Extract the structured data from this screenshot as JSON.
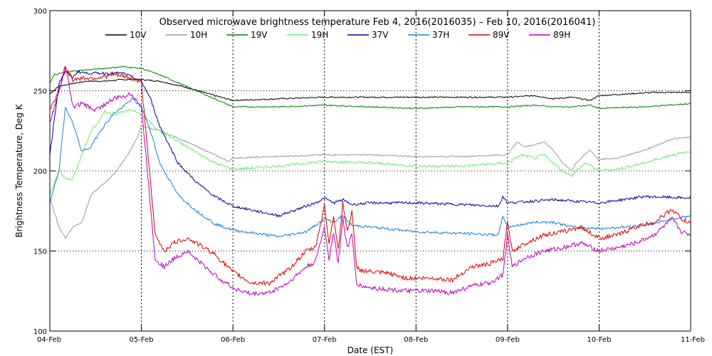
{
  "chart_data": {
    "type": "line",
    "title": "Observed microwave brightness temperature Feb  4, 2016(2016035) – Feb 10, 2016(2016041)",
    "xlabel": "Date (EST)",
    "ylabel": "Brightness Temperature, Deg K",
    "xlim": [
      0,
      7
    ],
    "ylim": [
      100,
      300
    ],
    "x_ticks": [
      {
        "value": 0,
        "label": "04-Feb"
      },
      {
        "value": 1,
        "label": "05-Feb"
      },
      {
        "value": 2,
        "label": "06-Feb"
      },
      {
        "value": 3,
        "label": "07-Feb"
      },
      {
        "value": 4,
        "label": "08-Feb"
      },
      {
        "value": 5,
        "label": "09-Feb"
      },
      {
        "value": 6,
        "label": "10-Feb"
      },
      {
        "value": 7,
        "label": "11-Feb"
      }
    ],
    "y_ticks": [
      100,
      150,
      200,
      250,
      300
    ],
    "grid": "dotted",
    "legend_position": "top",
    "series": [
      {
        "name": "10V",
        "color": "#000000",
        "x": [
          0,
          0.1,
          0.2,
          0.4,
          0.6,
          0.8,
          1.0,
          1.2,
          1.5,
          1.8,
          2.0,
          2.5,
          3.0,
          3.5,
          4.0,
          4.5,
          5.0,
          5.3,
          5.5,
          5.7,
          5.9,
          6.0,
          6.3,
          6.6,
          7.0
        ],
        "values": [
          248,
          253,
          254,
          256,
          256,
          257,
          257,
          256,
          252,
          247,
          244,
          245,
          246,
          246,
          246,
          246,
          246,
          247,
          245,
          246,
          244,
          247,
          248,
          249,
          249
        ]
      },
      {
        "name": "10H",
        "color": "#999999",
        "x": [
          0,
          0.1,
          0.17,
          0.25,
          0.35,
          0.45,
          0.55,
          0.7,
          0.85,
          0.95,
          1.0,
          1.2,
          1.5,
          1.8,
          1.95,
          2.0,
          2.5,
          3.0,
          3.5,
          4.0,
          4.5,
          5.0,
          5.1,
          5.2,
          5.4,
          5.5,
          5.6,
          5.7,
          5.75,
          5.9,
          6.0,
          6.2,
          6.5,
          6.8,
          7.0
        ],
        "values": [
          183,
          165,
          158,
          165,
          168,
          185,
          190,
          198,
          210,
          220,
          228,
          225,
          218,
          210,
          206,
          208,
          209,
          210,
          210,
          209,
          209,
          210,
          218,
          215,
          218,
          213,
          205,
          200,
          205,
          213,
          207,
          208,
          213,
          220,
          221
        ]
      },
      {
        "name": "19V",
        "color": "#008000",
        "x": [
          0,
          0.05,
          0.2,
          0.4,
          0.6,
          0.8,
          1.0,
          1.2,
          1.4,
          1.6,
          1.8,
          2.0,
          2.5,
          3.0,
          3.5,
          4.0,
          4.5,
          5.0,
          5.3,
          5.5,
          5.7,
          5.9,
          6.0,
          6.5,
          7.0
        ],
        "values": [
          255,
          260,
          262,
          263,
          264,
          265,
          264,
          260,
          255,
          250,
          245,
          240,
          240,
          241,
          240,
          239,
          240,
          240,
          241,
          240,
          240,
          241,
          239,
          240,
          242
        ]
      },
      {
        "name": "19H",
        "color": "#66ee66",
        "x": [
          0,
          0.1,
          0.17,
          0.25,
          0.35,
          0.45,
          0.55,
          0.6,
          0.7,
          0.8,
          0.9,
          1.0,
          1.2,
          1.5,
          1.8,
          2.0,
          2.5,
          3.0,
          3.5,
          4.0,
          4.5,
          5.0,
          5.15,
          5.3,
          5.4,
          5.5,
          5.6,
          5.7,
          5.75,
          5.85,
          6.0,
          6.2,
          6.5,
          6.8,
          7.0
        ],
        "values": [
          185,
          200,
          195,
          195,
          210,
          225,
          232,
          237,
          235,
          237,
          238,
          235,
          225,
          215,
          205,
          201,
          203,
          206,
          205,
          203,
          203,
          205,
          210,
          208,
          210,
          205,
          200,
          197,
          200,
          205,
          200,
          201,
          205,
          210,
          212
        ]
      },
      {
        "name": "37V",
        "color": "#0000aa",
        "x": [
          0,
          0.1,
          0.17,
          0.25,
          0.3,
          0.4,
          0.6,
          0.8,
          1.0,
          1.1,
          1.2,
          1.4,
          1.6,
          1.8,
          2.0,
          2.5,
          2.8,
          2.9,
          3.0,
          3.1,
          3.2,
          3.3,
          3.5,
          4.0,
          4.5,
          4.9,
          4.95,
          5.0,
          5.5,
          6.0,
          6.5,
          7.0
        ],
        "values": [
          210,
          255,
          262,
          258,
          262,
          261,
          261,
          261,
          256,
          245,
          228,
          205,
          193,
          184,
          178,
          172,
          178,
          180,
          183,
          180,
          182,
          179,
          180,
          180,
          179,
          178,
          184,
          180,
          182,
          180,
          184,
          183
        ]
      },
      {
        "name": "37H",
        "color": "#1a7fd4",
        "x": [
          0,
          0.1,
          0.17,
          0.25,
          0.35,
          0.45,
          0.55,
          0.7,
          0.8,
          0.9,
          1.0,
          1.1,
          1.2,
          1.4,
          1.6,
          1.8,
          2.0,
          2.5,
          2.8,
          2.9,
          3.0,
          3.1,
          3.2,
          3.3,
          3.5,
          4.0,
          4.5,
          4.9,
          4.95,
          5.0,
          5.3,
          5.5,
          5.7,
          6.0,
          6.3,
          6.6,
          6.8,
          7.0
        ],
        "values": [
          180,
          200,
          240,
          230,
          212,
          215,
          225,
          236,
          240,
          245,
          240,
          225,
          205,
          185,
          175,
          167,
          163,
          159,
          162,
          166,
          170,
          168,
          172,
          166,
          165,
          162,
          161,
          160,
          172,
          165,
          168,
          168,
          165,
          164,
          165,
          167,
          170,
          172
        ]
      },
      {
        "name": "89V",
        "color": "#e00000",
        "x": [
          0,
          0.1,
          0.17,
          0.25,
          0.35,
          0.5,
          0.7,
          0.9,
          1.0,
          1.05,
          1.15,
          1.25,
          1.35,
          1.5,
          1.6,
          1.8,
          2.0,
          2.2,
          2.4,
          2.6,
          2.8,
          2.9,
          3.0,
          3.05,
          3.1,
          3.15,
          3.2,
          3.25,
          3.3,
          3.35,
          3.4,
          3.5,
          3.7,
          3.9,
          4.0,
          4.2,
          4.4,
          4.6,
          4.8,
          4.95,
          5.0,
          5.05,
          5.2,
          5.4,
          5.6,
          5.8,
          6.0,
          6.2,
          6.4,
          6.6,
          6.7,
          6.8,
          6.9,
          7.0
        ],
        "values": [
          238,
          250,
          264,
          257,
          258,
          258,
          260,
          258,
          255,
          225,
          160,
          150,
          155,
          158,
          155,
          148,
          137,
          130,
          130,
          138,
          150,
          152,
          178,
          155,
          172,
          150,
          180,
          162,
          175,
          140,
          138,
          137,
          136,
          133,
          133,
          133,
          132,
          140,
          142,
          145,
          168,
          150,
          155,
          160,
          162,
          165,
          158,
          160,
          165,
          168,
          172,
          176,
          170,
          167
        ]
      },
      {
        "name": "89H",
        "color": "#bb00bb",
        "x": [
          0,
          0.1,
          0.17,
          0.25,
          0.35,
          0.5,
          0.7,
          0.9,
          1.0,
          1.05,
          1.15,
          1.25,
          1.35,
          1.5,
          1.6,
          1.8,
          2.0,
          2.2,
          2.4,
          2.6,
          2.8,
          2.9,
          3.0,
          3.05,
          3.1,
          3.15,
          3.2,
          3.25,
          3.3,
          3.35,
          3.4,
          3.5,
          3.7,
          3.9,
          4.0,
          4.2,
          4.4,
          4.6,
          4.8,
          4.95,
          5.0,
          5.05,
          5.2,
          5.4,
          5.6,
          5.8,
          6.0,
          6.2,
          6.4,
          6.6,
          6.7,
          6.8,
          6.9,
          7.0
        ],
        "values": [
          230,
          250,
          266,
          240,
          242,
          238,
          245,
          248,
          240,
          210,
          145,
          140,
          145,
          150,
          145,
          135,
          127,
          123,
          124,
          130,
          140,
          143,
          165,
          145,
          162,
          142,
          170,
          152,
          160,
          130,
          128,
          127,
          126,
          125,
          125,
          125,
          124,
          128,
          130,
          135,
          160,
          140,
          146,
          150,
          152,
          155,
          150,
          152,
          155,
          160,
          165,
          170,
          162,
          160
        ]
      }
    ]
  }
}
